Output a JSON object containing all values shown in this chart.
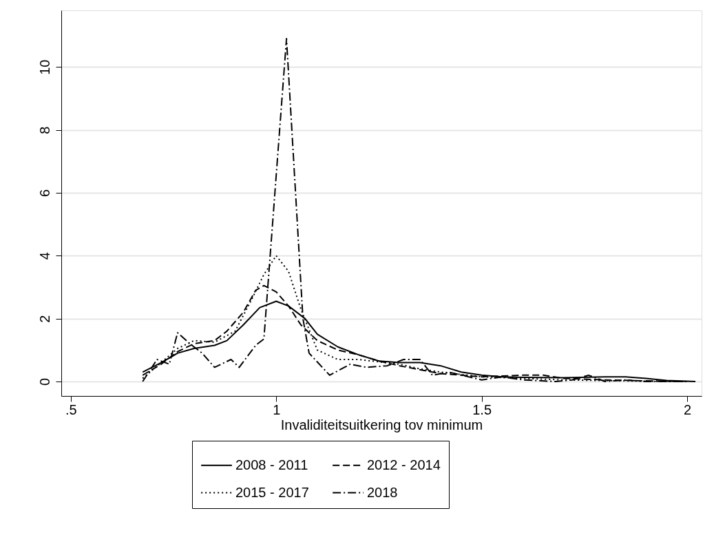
{
  "chart_data": {
    "type": "line",
    "xlabel": "Invaliditeitsuitkering tov minimum",
    "xlim": [
      0.477,
      2.035
    ],
    "xticks": [
      {
        "value": 0.5,
        "label": ".5"
      },
      1,
      1.5,
      2
    ],
    "ylim": [
      -0.46,
      11.8
    ],
    "yticks": [
      0,
      2,
      4,
      6,
      8,
      10
    ],
    "grid": "y",
    "legend": "bottom",
    "marker": "none",
    "series": [
      {
        "name": "2008 - 2011",
        "color": "#000000",
        "line_style": "solid",
        "x": [
          0.675,
          0.72,
          0.76,
          0.8,
          0.85,
          0.88,
          0.92,
          0.96,
          1.0,
          1.03,
          1.07,
          1.1,
          1.15,
          1.2,
          1.25,
          1.3,
          1.35,
          1.4,
          1.45,
          1.5,
          1.55,
          1.6,
          1.7,
          1.8,
          1.85,
          1.9,
          1.95,
          2.02
        ],
        "values": [
          0.3,
          0.6,
          0.9,
          1.05,
          1.15,
          1.3,
          1.8,
          2.35,
          2.55,
          2.4,
          2.0,
          1.5,
          1.1,
          0.85,
          0.65,
          0.6,
          0.6,
          0.5,
          0.3,
          0.2,
          0.15,
          0.13,
          0.12,
          0.15,
          0.15,
          0.1,
          0.03,
          0.0
        ]
      },
      {
        "name": "2012 - 2014",
        "color": "#000000",
        "line_style": "dashed",
        "x": [
          0.675,
          0.72,
          0.76,
          0.8,
          0.85,
          0.88,
          0.92,
          0.95,
          0.97,
          1.0,
          1.03,
          1.06,
          1.1,
          1.15,
          1.2,
          1.25,
          1.3,
          1.4,
          1.5,
          1.6,
          1.65,
          1.7,
          1.8,
          1.9,
          2.0
        ],
        "values": [
          0.2,
          0.55,
          0.95,
          1.2,
          1.3,
          1.6,
          2.2,
          2.9,
          3.05,
          2.85,
          2.4,
          1.8,
          1.3,
          1.0,
          0.85,
          0.65,
          0.5,
          0.25,
          0.15,
          0.2,
          0.2,
          0.1,
          0.05,
          0.02,
          0.0
        ]
      },
      {
        "name": "2015 - 2017",
        "color": "#000000",
        "line_style": "dotted",
        "x": [
          0.675,
          0.72,
          0.76,
          0.8,
          0.85,
          0.9,
          0.94,
          0.97,
          1.0,
          1.03,
          1.06,
          1.1,
          1.15,
          1.2,
          1.3,
          1.35,
          1.4,
          1.5,
          1.6,
          1.7,
          1.8,
          1.9,
          2.0
        ],
        "values": [
          0.1,
          0.6,
          1.05,
          1.3,
          1.25,
          1.6,
          2.6,
          3.4,
          4.0,
          3.5,
          2.3,
          1.0,
          0.7,
          0.7,
          0.55,
          0.4,
          0.3,
          0.15,
          0.1,
          0.05,
          0.03,
          0.01,
          0.0
        ]
      },
      {
        "name": "2018",
        "color": "#000000",
        "line_style": "dashdot",
        "x": [
          0.675,
          0.71,
          0.74,
          0.76,
          0.79,
          0.82,
          0.85,
          0.89,
          0.91,
          0.95,
          0.97,
          1.025,
          1.065,
          1.08,
          1.13,
          1.18,
          1.22,
          1.27,
          1.31,
          1.35,
          1.38,
          1.42,
          1.5,
          1.55,
          1.6,
          1.68,
          1.72,
          1.76,
          1.8,
          1.85,
          1.9,
          2.0
        ],
        "values": [
          0.0,
          0.7,
          0.55,
          1.55,
          1.2,
          0.9,
          0.45,
          0.7,
          0.45,
          1.15,
          1.35,
          10.9,
          2.0,
          0.9,
          0.2,
          0.55,
          0.45,
          0.5,
          0.7,
          0.7,
          0.2,
          0.3,
          0.05,
          0.15,
          0.05,
          0.0,
          0.05,
          0.2,
          0.0,
          0.05,
          0.0,
          0.0
        ]
      }
    ]
  }
}
